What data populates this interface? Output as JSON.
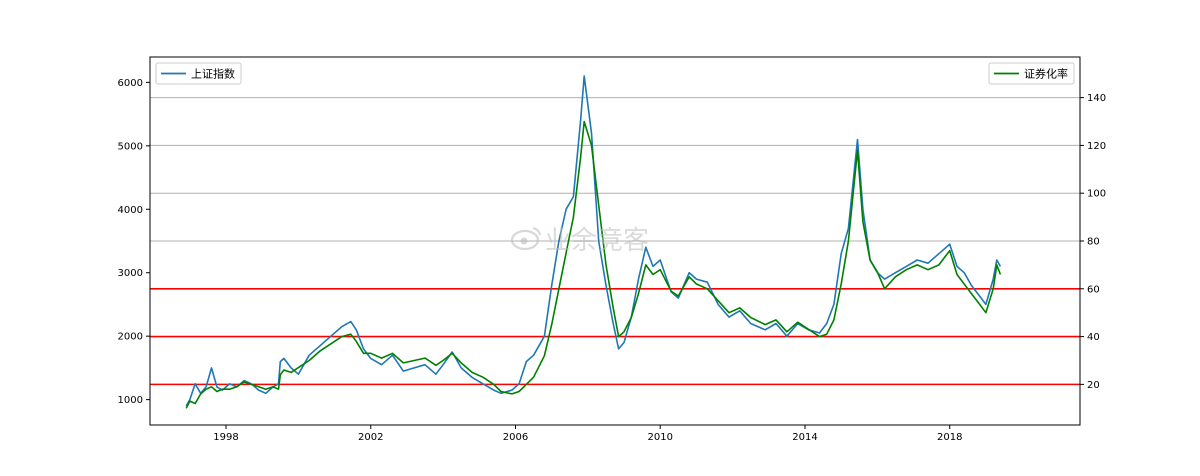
{
  "chart_data": {
    "type": "line",
    "x_ticks": [
      "1998",
      "2002",
      "2006",
      "2010",
      "2014",
      "2018"
    ],
    "x_range": [
      1995.9,
      2021.6
    ],
    "left_axis": {
      "ylim": [
        600,
        6400
      ],
      "ticks": [
        "1000",
        "2000",
        "3000",
        "4000",
        "5000",
        "6000"
      ]
    },
    "right_axis": {
      "ylim": [
        3,
        157
      ],
      "ticks": [
        "20",
        "40",
        "60",
        "80",
        "100",
        "120",
        "140"
      ]
    },
    "hlines_right": {
      "red": [
        20,
        40,
        60
      ],
      "gray": [
        80,
        100,
        120,
        140
      ]
    },
    "legend_left": "上证指数",
    "legend_right": "证券化率",
    "colors": {
      "left_series": "#1f77b4",
      "right_series": "#008000",
      "red_line": "#ff0000",
      "grid": "#b0b0b0"
    },
    "series": [
      {
        "name": "上证指数",
        "axis": "left",
        "x": [
          1996.9,
          1997.0,
          1997.15,
          1997.3,
          1997.45,
          1997.6,
          1997.75,
          1997.9,
          1998.1,
          1998.3,
          1998.5,
          1998.7,
          1998.9,
          1999.1,
          1999.3,
          1999.45,
          1999.5,
          1999.6,
          1999.8,
          2000.0,
          2000.3,
          2000.6,
          2000.9,
          2001.2,
          2001.45,
          2001.6,
          2001.8,
          2002.0,
          2002.3,
          2002.6,
          2002.9,
          2003.2,
          2003.5,
          2003.8,
          2004.0,
          2004.25,
          2004.5,
          2004.8,
          2005.1,
          2005.4,
          2005.6,
          2005.9,
          2006.1,
          2006.3,
          2006.5,
          2006.8,
          2007.0,
          2007.2,
          2007.4,
          2007.6,
          2007.8,
          2007.9,
          2008.1,
          2008.3,
          2008.5,
          2008.7,
          2008.85,
          2009.0,
          2009.2,
          2009.4,
          2009.6,
          2009.8,
          2010.0,
          2010.3,
          2010.5,
          2010.8,
          2011.0,
          2011.3,
          2011.6,
          2011.9,
          2012.2,
          2012.5,
          2012.9,
          2013.2,
          2013.5,
          2013.8,
          2014.1,
          2014.4,
          2014.6,
          2014.8,
          2015.0,
          2015.2,
          2015.45,
          2015.6,
          2015.8,
          2016.0,
          2016.2,
          2016.5,
          2016.8,
          2017.1,
          2017.4,
          2017.7,
          2018.0,
          2018.2,
          2018.4,
          2018.6,
          2018.8,
          2019.0,
          2019.2,
          2019.3,
          2019.4
        ],
        "values": [
          900,
          1000,
          1250,
          1100,
          1200,
          1500,
          1200,
          1150,
          1250,
          1200,
          1300,
          1250,
          1150,
          1100,
          1200,
          1250,
          1600,
          1650,
          1500,
          1400,
          1700,
          1850,
          2000,
          2150,
          2230,
          2100,
          1800,
          1650,
          1550,
          1700,
          1450,
          1500,
          1550,
          1400,
          1550,
          1750,
          1500,
          1350,
          1250,
          1150,
          1100,
          1150,
          1250,
          1600,
          1700,
          2000,
          2800,
          3500,
          4000,
          4200,
          5400,
          6100,
          5200,
          3500,
          2800,
          2200,
          1800,
          1900,
          2300,
          2900,
          3400,
          3100,
          3200,
          2700,
          2600,
          3000,
          2900,
          2850,
          2500,
          2300,
          2400,
          2200,
          2100,
          2200,
          2000,
          2200,
          2100,
          2050,
          2200,
          2500,
          3300,
          3700,
          5100,
          4000,
          3200,
          3000,
          2900,
          3000,
          3100,
          3200,
          3150,
          3300,
          3450,
          3100,
          3000,
          2800,
          2650,
          2500,
          2900,
          3200,
          3100
        ]
      },
      {
        "name": "证券化率",
        "axis": "right",
        "x": [
          1996.9,
          1997.0,
          1997.15,
          1997.3,
          1997.45,
          1997.6,
          1997.75,
          1997.9,
          1998.1,
          1998.3,
          1998.5,
          1998.7,
          1998.9,
          1999.1,
          1999.3,
          1999.45,
          1999.5,
          1999.6,
          1999.8,
          2000.0,
          2000.3,
          2000.6,
          2000.9,
          2001.2,
          2001.45,
          2001.6,
          2001.8,
          2002.0,
          2002.3,
          2002.6,
          2002.9,
          2003.2,
          2003.5,
          2003.8,
          2004.0,
          2004.25,
          2004.5,
          2004.8,
          2005.1,
          2005.4,
          2005.6,
          2005.9,
          2006.1,
          2006.3,
          2006.5,
          2006.8,
          2007.0,
          2007.2,
          2007.4,
          2007.6,
          2007.8,
          2007.9,
          2008.1,
          2008.3,
          2008.5,
          2008.7,
          2008.85,
          2009.0,
          2009.2,
          2009.4,
          2009.6,
          2009.8,
          2010.0,
          2010.3,
          2010.5,
          2010.8,
          2011.0,
          2011.3,
          2011.6,
          2011.9,
          2012.2,
          2012.5,
          2012.9,
          2013.2,
          2013.5,
          2013.8,
          2014.1,
          2014.4,
          2014.6,
          2014.8,
          2015.0,
          2015.2,
          2015.45,
          2015.6,
          2015.8,
          2016.0,
          2016.2,
          2016.5,
          2016.8,
          2017.1,
          2017.4,
          2017.7,
          2018.0,
          2018.2,
          2018.4,
          2018.6,
          2018.8,
          2019.0,
          2019.2,
          2019.3,
          2019.4
        ],
        "values": [
          10,
          13,
          12,
          16,
          18,
          19,
          17,
          18,
          18,
          19,
          21,
          20,
          19,
          18,
          19,
          18,
          24,
          26,
          25,
          27,
          30,
          34,
          37,
          40,
          41,
          38,
          33,
          33,
          31,
          33,
          29,
          30,
          31,
          28,
          30,
          33,
          29,
          25,
          23,
          20,
          17,
          16,
          17,
          20,
          23,
          32,
          45,
          60,
          75,
          90,
          115,
          130,
          120,
          95,
          70,
          52,
          40,
          42,
          48,
          58,
          70,
          66,
          68,
          59,
          57,
          65,
          62,
          60,
          55,
          50,
          52,
          48,
          45,
          47,
          42,
          46,
          43,
          40,
          41,
          47,
          62,
          80,
          118,
          88,
          72,
          67,
          60,
          65,
          68,
          70,
          68,
          70,
          76,
          66,
          62,
          58,
          54,
          50,
          60,
          70,
          66
        ]
      }
    ]
  },
  "watermark": "业余竞客"
}
